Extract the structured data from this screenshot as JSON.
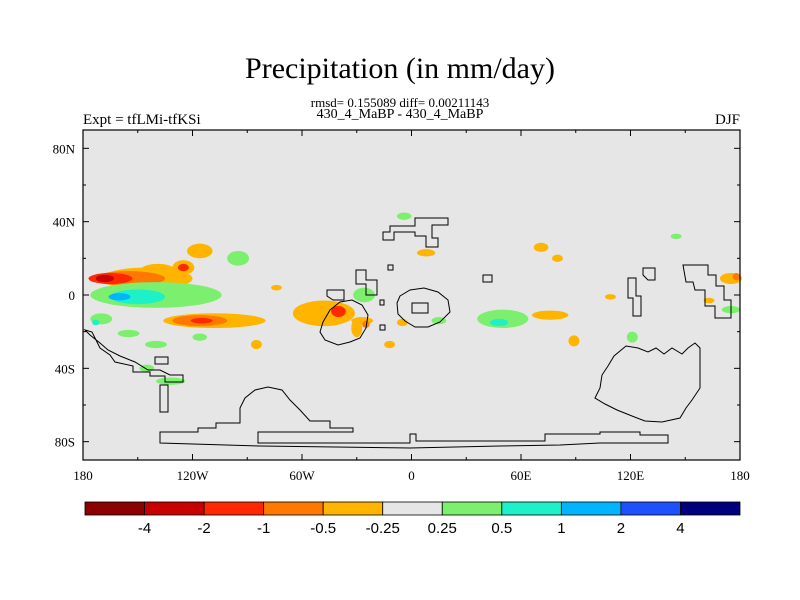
{
  "header": {
    "title": "Precipitation (in mm/day)",
    "stats": "rmsd= 0.155089 diff= 0.00211143",
    "subtitle": "430_4_MaBP - 430_4_MaBP",
    "left_label": "Expt = tfLMi-tfKSi",
    "right_label": "DJF"
  },
  "chart_data": {
    "type": "heatmap",
    "title": "Precipitation (in mm/day)",
    "subtitle": "430_4_MaBP - 430_4_MaBP",
    "annotation": "rmsd= 0.155089 diff= 0.00211143",
    "experiment": "Expt = tfLMi-tfKSi",
    "season": "DJF",
    "xlim": [
      -180,
      180
    ],
    "ylim": [
      -90,
      90
    ],
    "x_ticks": [
      {
        "value": -180,
        "label": "180"
      },
      {
        "value": -120,
        "label": "120W"
      },
      {
        "value": -60,
        "label": "60W"
      },
      {
        "value": 0,
        "label": "0"
      },
      {
        "value": 60,
        "label": "60E"
      },
      {
        "value": 120,
        "label": "120E"
      },
      {
        "value": 180,
        "label": "180"
      }
    ],
    "y_ticks": [
      {
        "value": 80,
        "label": "80N"
      },
      {
        "value": 40,
        "label": "40N"
      },
      {
        "value": 0,
        "label": "0"
      },
      {
        "value": -40,
        "label": "40S"
      },
      {
        "value": -80,
        "label": "80S"
      }
    ],
    "colorbar": {
      "colors": [
        "#8b0000",
        "#c80000",
        "#ff2800",
        "#ff7800",
        "#ffb400",
        "#e6e6e6",
        "#7cf06e",
        "#1ef0c8",
        "#00b4ff",
        "#1e50ff",
        "#00007e"
      ],
      "labels": [
        "-4",
        "-2",
        "-1",
        "-0.5",
        "-0.25",
        "0.25",
        "0.5",
        "1",
        "2",
        "4"
      ]
    },
    "background_color": "#e6e6e6",
    "anomaly_patches": [
      {
        "lon": -116,
        "lat": 24,
        "rx": 7,
        "ry": 4,
        "color": "#ffb400"
      },
      {
        "lon": -139,
        "lat": 13,
        "rx": 10,
        "ry": 4,
        "color": "#ffb400"
      },
      {
        "lon": -125,
        "lat": 15,
        "rx": 6,
        "ry": 4,
        "color": "#ffb400"
      },
      {
        "lon": -125,
        "lat": 15,
        "rx": 3,
        "ry": 2,
        "color": "#ff2800"
      },
      {
        "lon": -95,
        "lat": 20,
        "rx": 6,
        "ry": 4,
        "color": "#7cf06e"
      },
      {
        "lon": -145,
        "lat": 9,
        "rx": 25,
        "ry": 6,
        "color": "#ffb400"
      },
      {
        "lon": -155,
        "lat": 9,
        "rx": 20,
        "ry": 4,
        "color": "#ff7800"
      },
      {
        "lon": -165,
        "lat": 9,
        "rx": 12,
        "ry": 3,
        "color": "#ff2800"
      },
      {
        "lon": -168,
        "lat": 9,
        "rx": 5,
        "ry": 2,
        "color": "#c80000"
      },
      {
        "lon": -140,
        "lat": 0,
        "rx": 36,
        "ry": 7,
        "color": "#7cf06e"
      },
      {
        "lon": -150,
        "lat": -1,
        "rx": 15,
        "ry": 4,
        "color": "#1ef0c8"
      },
      {
        "lon": -160,
        "lat": -1,
        "rx": 6,
        "ry": 2,
        "color": "#00b4ff"
      },
      {
        "lon": -108,
        "lat": -14,
        "rx": 28,
        "ry": 4,
        "color": "#ffb400"
      },
      {
        "lon": -116,
        "lat": -14,
        "rx": 15,
        "ry": 3,
        "color": "#ff7800"
      },
      {
        "lon": -115,
        "lat": -14,
        "rx": 6,
        "ry": 1.5,
        "color": "#ff2800"
      },
      {
        "lon": -170,
        "lat": -13,
        "rx": 6,
        "ry": 3,
        "color": "#7cf06e"
      },
      {
        "lon": -173,
        "lat": -15,
        "rx": 2,
        "ry": 1.5,
        "color": "#1ef0c8"
      },
      {
        "lon": -155,
        "lat": -21,
        "rx": 6,
        "ry": 2,
        "color": "#7cf06e"
      },
      {
        "lon": -140,
        "lat": -27,
        "rx": 6,
        "ry": 2,
        "color": "#7cf06e"
      },
      {
        "lon": -116,
        "lat": -23,
        "rx": 4,
        "ry": 2,
        "color": "#7cf06e"
      },
      {
        "lon": -145,
        "lat": -40,
        "rx": 4,
        "ry": 2,
        "color": "#7cf06e"
      },
      {
        "lon": -132,
        "lat": -47,
        "rx": 8,
        "ry": 2,
        "color": "#7cf06e"
      },
      {
        "lon": -85,
        "lat": -27,
        "rx": 3,
        "ry": 2.5,
        "color": "#ffb400"
      },
      {
        "lon": -48,
        "lat": -10,
        "rx": 17,
        "ry": 7,
        "color": "#ffb400"
      },
      {
        "lon": -40,
        "lat": -9,
        "rx": 4,
        "ry": 3,
        "color": "#ff2800"
      },
      {
        "lon": -26,
        "lat": 0,
        "rx": 6,
        "ry": 4,
        "color": "#7cf06e"
      },
      {
        "lon": -30,
        "lat": -18,
        "rx": 3,
        "ry": 5,
        "color": "#ffb400"
      },
      {
        "lon": -27,
        "lat": -14,
        "rx": 6,
        "ry": 2,
        "color": "#ffb400"
      },
      {
        "lon": -25,
        "lat": -16,
        "rx": 2,
        "ry": 2,
        "color": "#ff7800"
      },
      {
        "lon": -5,
        "lat": -15,
        "rx": 3,
        "ry": 2,
        "color": "#ffb400"
      },
      {
        "lon": -12,
        "lat": -27,
        "rx": 3,
        "ry": 2,
        "color": "#ffb400"
      },
      {
        "lon": 8,
        "lat": 23,
        "rx": 5,
        "ry": 2,
        "color": "#ffb400"
      },
      {
        "lon": 15,
        "lat": -14,
        "rx": 4,
        "ry": 2,
        "color": "#7cf06e"
      },
      {
        "lon": -4,
        "lat": 43,
        "rx": 4,
        "ry": 2,
        "color": "#7cf06e"
      },
      {
        "lon": 50,
        "lat": -13,
        "rx": 14,
        "ry": 5,
        "color": "#7cf06e"
      },
      {
        "lon": 48,
        "lat": -15,
        "rx": 5,
        "ry": 2,
        "color": "#1ef0c8"
      },
      {
        "lon": 76,
        "lat": -11,
        "rx": 10,
        "ry": 2.5,
        "color": "#ffb400"
      },
      {
        "lon": 71,
        "lat": 26,
        "rx": 4,
        "ry": 2.5,
        "color": "#ffb400"
      },
      {
        "lon": 80,
        "lat": 20,
        "rx": 3,
        "ry": 2,
        "color": "#ffb400"
      },
      {
        "lon": 89,
        "lat": -25,
        "rx": 3,
        "ry": 3,
        "color": "#ffb400"
      },
      {
        "lon": 109,
        "lat": -1,
        "rx": 3,
        "ry": 1.5,
        "color": "#ffb400"
      },
      {
        "lon": 121,
        "lat": -23,
        "rx": 3,
        "ry": 3,
        "color": "#7cf06e"
      },
      {
        "lon": -74,
        "lat": 4,
        "rx": 3,
        "ry": 1.5,
        "color": "#ffb400"
      },
      {
        "lon": 175,
        "lat": 9,
        "rx": 6,
        "ry": 3,
        "color": "#ffb400"
      },
      {
        "lon": 178,
        "lat": 10,
        "rx": 2,
        "ry": 2,
        "color": "#ff7800"
      },
      {
        "lon": 175,
        "lat": -8,
        "rx": 5,
        "ry": 2,
        "color": "#7cf06e"
      },
      {
        "lon": 163,
        "lat": -3,
        "rx": 3,
        "ry": 1.5,
        "color": "#ffb400"
      },
      {
        "lon": 145,
        "lat": 32,
        "rx": 3,
        "ry": 1.5,
        "color": "#7cf06e"
      }
    ]
  }
}
